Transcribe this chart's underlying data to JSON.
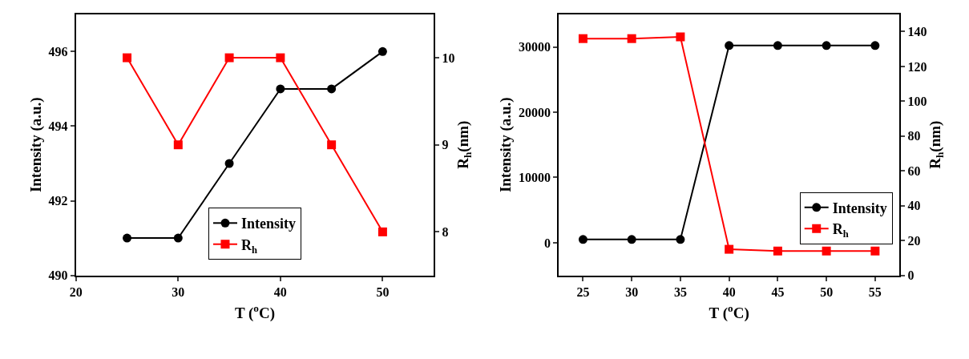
{
  "chart_data": [
    {
      "type": "line",
      "xlabel": "T ($^{o}$C)",
      "ylabel": "Intensity (a.u.)",
      "y2label": "R$_{h}$(nm)",
      "x": [
        25,
        30,
        35,
        40,
        45,
        50
      ],
      "xlim": [
        20,
        55
      ],
      "xticks": [
        20,
        30,
        40,
        50
      ],
      "ylim": [
        490,
        497
      ],
      "yticks": [
        490,
        492,
        494,
        496
      ],
      "y2lim": [
        7.5,
        10.5
      ],
      "y2ticks": [
        8,
        9,
        10
      ],
      "legend": "bottom",
      "series": [
        {
          "name": "Intensity",
          "color": "#000000",
          "marker": "circle",
          "values": [
            491,
            491,
            493,
            495,
            495,
            496
          ]
        },
        {
          "name": "R$_{h}$",
          "color": "#ff0000",
          "marker": "square",
          "axis": "y2",
          "values": [
            10,
            9,
            10,
            10,
            9,
            8
          ]
        }
      ]
    },
    {
      "type": "line",
      "xlabel": "T ($^{o}$C)",
      "ylabel": "Intensity (a.u.)",
      "y2label": "R$_{h}$(nm)",
      "x": [
        25,
        30,
        35,
        40,
        45,
        50,
        55
      ],
      "xlim": [
        22.5,
        57.5
      ],
      "xticks": [
        25,
        30,
        35,
        40,
        45,
        50,
        55
      ],
      "ylim": [
        -5000,
        35000
      ],
      "yticks": [
        0,
        10000,
        20000,
        30000
      ],
      "y2lim": [
        0,
        150
      ],
      "y2ticks": [
        0,
        20,
        40,
        60,
        80,
        100,
        120,
        140
      ],
      "legend": "bottom right",
      "series": [
        {
          "name": "Intensity",
          "color": "#000000",
          "marker": "circle",
          "values": [
            500,
            500,
            500,
            30200,
            30200,
            30200,
            30200
          ]
        },
        {
          "name": "R$_{h}$",
          "color": "#ff0000",
          "marker": "square",
          "axis": "y2",
          "values": [
            136,
            136,
            137,
            15,
            14,
            14,
            14
          ]
        }
      ]
    }
  ]
}
